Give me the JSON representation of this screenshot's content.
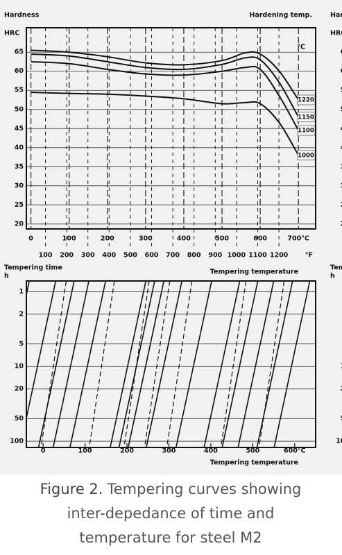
{
  "chart_data": [
    {
      "type": "line",
      "y_label": "Hardness",
      "y_unit": "HRC",
      "legend_title": "Hardening temp.",
      "legend_unit": "°C",
      "x": [
        0,
        100,
        200,
        300,
        400,
        500,
        560,
        600,
        650,
        700
      ],
      "series": [
        {
          "name": "1220",
          "color": "#111111",
          "values": [
            65.5,
            65,
            63.8,
            62.2,
            61.7,
            62.8,
            64.8,
            64.5,
            60,
            52.5
          ]
        },
        {
          "name": "1150",
          "color": "#111111",
          "values": [
            64.5,
            64,
            62.5,
            61,
            60.5,
            61.8,
            63.5,
            63,
            57,
            48
          ]
        },
        {
          "name": "1100",
          "color": "#111111",
          "values": [
            62.5,
            62,
            60.5,
            59.3,
            59,
            60,
            61,
            60.5,
            53.5,
            44.5
          ]
        },
        {
          "name": "1000",
          "color": "#111111",
          "values": [
            54.5,
            54.2,
            54,
            53.5,
            52.8,
            51.5,
            51.8,
            51.5,
            46.5,
            38
          ]
        }
      ],
      "xlim": [
        -12,
        745
      ],
      "xticks": [
        0,
        100,
        200,
        300,
        400,
        500,
        600,
        {
          "value": 700,
          "label": "700°C"
        }
      ],
      "x2lim": [
        10,
        1373
      ],
      "x2ticks": [
        100,
        200,
        300,
        400,
        500,
        600,
        700,
        800,
        900,
        1000,
        1100,
        1200
      ],
      "x2_unit": "°F",
      "ylim": [
        18.7,
        71.4
      ],
      "yticks": [
        20,
        25,
        30,
        35,
        40,
        45,
        50,
        55,
        60,
        65
      ],
      "grid": true
    },
    {
      "type": "nomogram",
      "y_label": "Tempering time",
      "y_unit": "h",
      "x_label_top": "Tempering temperature",
      "x_label": "Tempering temperature",
      "log_y": true,
      "ylim": [
        0.72,
        121
      ],
      "yticks": [
        1,
        2,
        5,
        10,
        20,
        50,
        100
      ],
      "xlim": [
        -40,
        650
      ],
      "xticks": [
        0,
        100,
        200,
        300,
        400,
        500,
        {
          "value": 600,
          "label": "600°C"
        }
      ],
      "series": [
        {
          "style": "solid",
          "x": [
            -33,
            -118
          ],
          "values": [
            0.72,
            121
          ]
        },
        {
          "style": "solid",
          "x": [
            30,
            -55
          ],
          "values": [
            0.72,
            121
          ]
        },
        {
          "style": "solid",
          "x": [
            74,
            -11
          ],
          "values": [
            0.72,
            121
          ]
        },
        {
          "style": "solid",
          "x": [
            109,
            24
          ],
          "values": [
            0.72,
            121
          ]
        },
        {
          "style": "solid",
          "x": [
            149,
            64
          ],
          "values": [
            0.72,
            121
          ]
        },
        {
          "style": "solid",
          "x": [
            245,
            160
          ],
          "values": [
            0.72,
            121
          ]
        },
        {
          "style": "solid",
          "x": [
            266,
            181
          ],
          "values": [
            0.72,
            121
          ]
        },
        {
          "style": "solid",
          "x": [
            288,
            203
          ],
          "values": [
            0.72,
            121
          ]
        },
        {
          "style": "solid",
          "x": [
            331,
            246
          ],
          "values": [
            0.72,
            121
          ]
        },
        {
          "style": "solid",
          "x": [
            402,
            317
          ],
          "values": [
            0.72,
            121
          ]
        },
        {
          "style": "solid",
          "x": [
            469,
            384
          ],
          "values": [
            0.72,
            121
          ]
        },
        {
          "style": "solid",
          "x": [
            512,
            427
          ],
          "values": [
            0.72,
            121
          ]
        },
        {
          "style": "solid",
          "x": [
            550,
            465
          ],
          "values": [
            0.72,
            121
          ]
        },
        {
          "style": "solid",
          "x": [
            595,
            510
          ],
          "values": [
            0.72,
            121
          ]
        },
        {
          "style": "solid",
          "x": [
            636,
            551
          ],
          "values": [
            0.72,
            121
          ]
        },
        {
          "style": "dashed",
          "x": [
            55,
            -5
          ],
          "values": [
            0.72,
            121
          ]
        },
        {
          "style": "dashed",
          "x": [
            170,
            110
          ],
          "values": [
            0.72,
            121
          ]
        },
        {
          "style": "dashed",
          "x": [
            253,
            193
          ],
          "values": [
            0.72,
            121
          ]
        },
        {
          "style": "dashed",
          "x": [
            302,
            242
          ],
          "values": [
            0.72,
            121
          ]
        },
        {
          "style": "dashed",
          "x": [
            355,
            295
          ],
          "values": [
            0.72,
            121
          ]
        },
        {
          "style": "dashed",
          "x": [
            484,
            424
          ],
          "values": [
            0.72,
            121
          ]
        },
        {
          "style": "dashed",
          "x": [
            575,
            515
          ],
          "values": [
            0.72,
            121
          ]
        }
      ]
    }
  ],
  "caption": {
    "label": "Figure 2.",
    "text_lines": [
      "Tempering curves showing",
      "inter-depedance of time and",
      "temperature for steel M2"
    ]
  }
}
